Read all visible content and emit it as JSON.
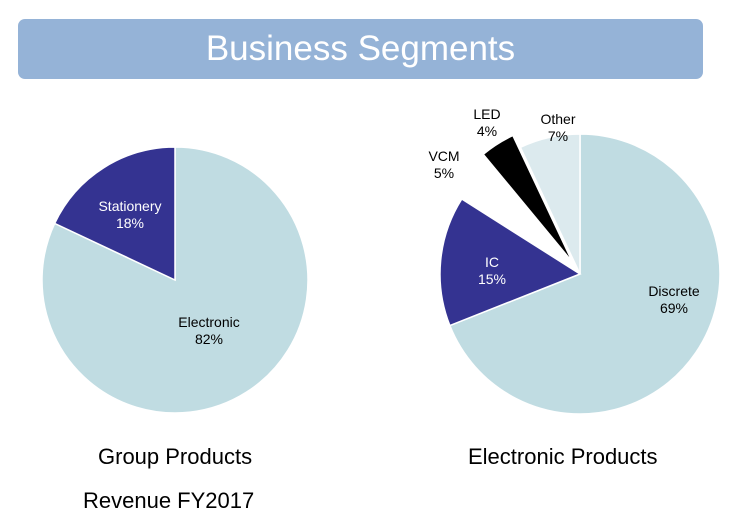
{
  "header": {
    "title": "Business Segments"
  },
  "colors": {
    "banner": "#95b3d7",
    "light_blue": "#c0dce2",
    "navy": "#343391",
    "black": "#000000",
    "pale": "#dceaee"
  },
  "chart_data": [
    {
      "type": "pie",
      "title": "Group Products",
      "subtitle": "Revenue FY2017",
      "slices": [
        {
          "label": "Electronic",
          "value": 82,
          "value_label": "82%",
          "color": "#c0dce2",
          "text_color": "#000000"
        },
        {
          "label": "Stationery",
          "value": 18,
          "value_label": "18%",
          "color": "#343391",
          "text_color": "#ffffff"
        }
      ]
    },
    {
      "type": "pie",
      "title": "Electronic Products",
      "slices": [
        {
          "label": "Discrete",
          "value": 69,
          "value_label": "69%",
          "color": "#c0dce2",
          "text_color": "#000000"
        },
        {
          "label": "IC",
          "value": 15,
          "value_label": "15%",
          "color": "#343391",
          "text_color": "#ffffff"
        },
        {
          "label": "VCM",
          "value": 5,
          "value_label": "5%",
          "color": "#ffffff",
          "text_color": "#000000"
        },
        {
          "label": "LED",
          "value": 4,
          "value_label": "4%",
          "color": "#000000",
          "text_color": "#000000"
        },
        {
          "label": "Other",
          "value": 7,
          "value_label": "7%",
          "color": "#dceaee",
          "text_color": "#000000"
        }
      ]
    }
  ]
}
